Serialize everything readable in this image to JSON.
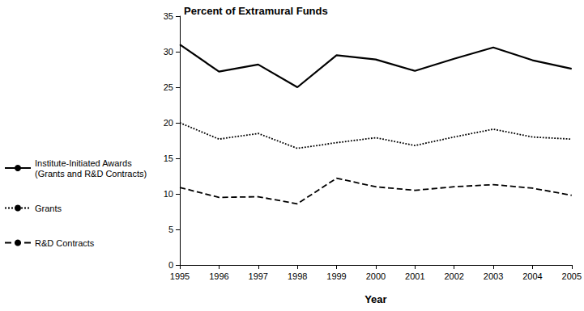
{
  "chart_data": {
    "type": "line",
    "title": "Percent of Extramural Funds",
    "x_label": "Year",
    "categories": [
      "1995",
      "1996",
      "1997",
      "1998",
      "1999",
      "2000",
      "2001",
      "2002",
      "2003",
      "2004",
      "2005"
    ],
    "series": [
      {
        "name": "Institute-Initiated Awards (Grants and R&D Contracts)",
        "color": "#000000",
        "line_style": "solid",
        "values": [
          31,
          27.2,
          28.2,
          25,
          29.5,
          28.9,
          27.3,
          29,
          30.6,
          28.8,
          27.6
        ]
      },
      {
        "name": "Grants",
        "color": "#000000",
        "line_style": "dotted",
        "values": [
          20,
          17.7,
          18.5,
          16.4,
          17.2,
          17.9,
          16.8,
          18,
          19.1,
          18,
          17.7
        ]
      },
      {
        "name": "R&D Contracts",
        "color": "#000000",
        "line_style": "dashed",
        "values": [
          10.9,
          9.5,
          9.6,
          8.6,
          12.2,
          11,
          10.5,
          11,
          11.3,
          10.8,
          9.8
        ]
      }
    ],
    "ylim": [
      0,
      35
    ],
    "yticks": [
      0,
      5,
      10,
      15,
      20,
      25,
      30,
      35
    ],
    "grid": false,
    "legend": "left"
  }
}
